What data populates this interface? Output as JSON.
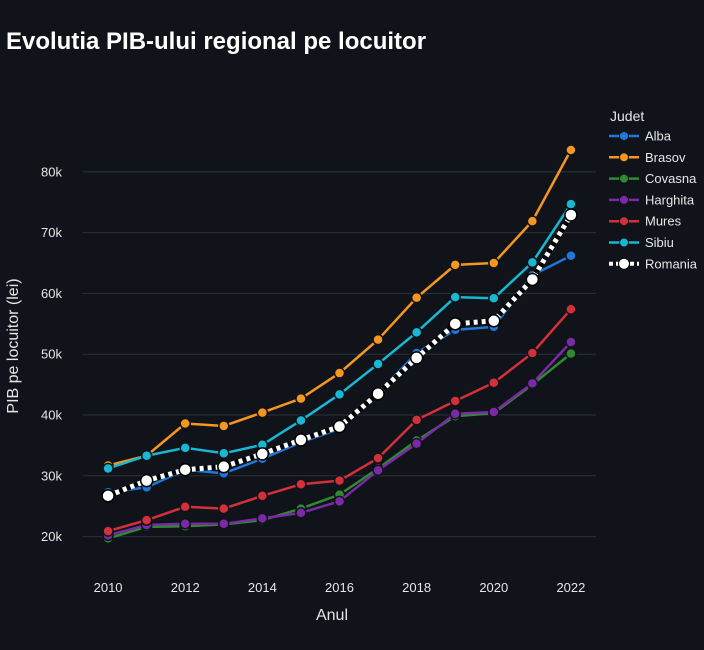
{
  "chart_data": {
    "type": "line",
    "title": "Evolutia PIB-ului regional pe locuitor",
    "xlabel": "Anul",
    "ylabel": "PIB pe locuitor (lei)",
    "x": [
      2010,
      2011,
      2012,
      2013,
      2014,
      2015,
      2016,
      2017,
      2018,
      2019,
      2020,
      2021,
      2022
    ],
    "xticks": [
      2010,
      2012,
      2014,
      2016,
      2018,
      2020,
      2022
    ],
    "xlim": [
      2009.35,
      2022.65
    ],
    "ylim": [
      14500,
      91000
    ],
    "yticks": [
      20000,
      30000,
      40000,
      50000,
      60000,
      70000,
      80000
    ],
    "ytick_labels": [
      "20k",
      "30k",
      "40k",
      "50k",
      "60k",
      "70k",
      "80k"
    ],
    "grid": true,
    "legend_title": "Judet",
    "legend_position": "right",
    "background": "#10131a",
    "series": [
      {
        "name": "Alba",
        "color": "#1f77d6",
        "values": [
          27300,
          28100,
          31000,
          30400,
          32800,
          35500,
          37700,
          43600,
          50200,
          54000,
          54500,
          63000,
          66200
        ]
      },
      {
        "name": "Brasov",
        "color": "#f5961f",
        "values": [
          31700,
          33300,
          38600,
          38200,
          40400,
          42700,
          46900,
          52400,
          59300,
          64700,
          65000,
          71900,
          83600
        ]
      },
      {
        "name": "Covasna",
        "color": "#2f8a34",
        "values": [
          19700,
          21600,
          21700,
          22000,
          22700,
          24600,
          26900,
          31200,
          35800,
          39800,
          40300,
          45000,
          50100
        ]
      },
      {
        "name": "Harghita",
        "color": "#7b2aa5",
        "values": [
          20200,
          21900,
          22100,
          22100,
          23000,
          23900,
          25800,
          30900,
          35300,
          40200,
          40500,
          45200,
          52000
        ]
      },
      {
        "name": "Mures",
        "color": "#d3303a",
        "values": [
          20900,
          22700,
          24900,
          24600,
          26700,
          28600,
          29200,
          32900,
          39200,
          42300,
          45300,
          50200,
          57400
        ]
      },
      {
        "name": "Sibiu",
        "color": "#17b8d1",
        "values": [
          31200,
          33300,
          34600,
          33700,
          35100,
          39100,
          43400,
          48400,
          53600,
          59400,
          59200,
          65100,
          74700
        ]
      },
      {
        "name": "Romania",
        "color": "#ffffff",
        "dashed": true,
        "values": [
          26700,
          29200,
          31000,
          31500,
          33600,
          35900,
          38100,
          43500,
          49400,
          55000,
          55500,
          62300,
          72900
        ]
      }
    ]
  }
}
